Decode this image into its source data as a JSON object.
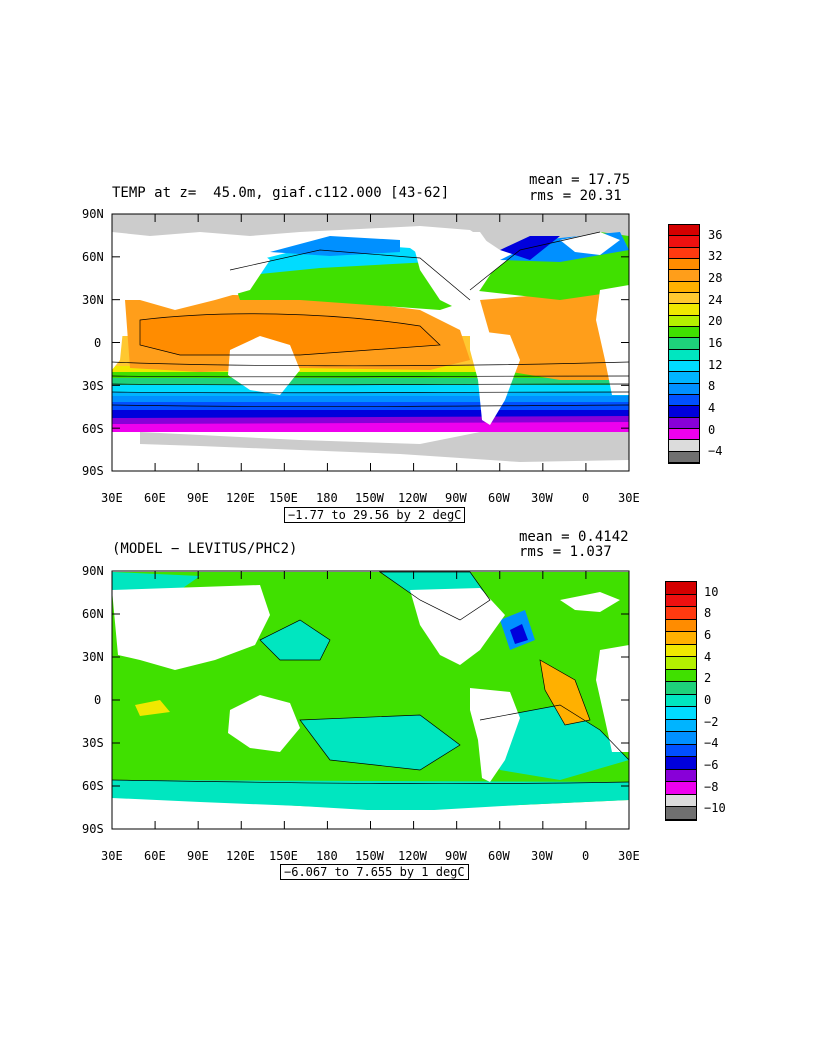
{
  "panels": [
    {
      "title": "TEMP at z=  45.0m, giaf.c112.000 [43-62]",
      "mean": "mean = 17.75",
      "rms": "rms = 20.31",
      "range": "−1.77 to 29.56 by 2 degC",
      "lat_labels": [
        "90N",
        "60N",
        "30N",
        "0",
        "30S",
        "60S",
        "90S"
      ],
      "lon_labels": [
        "30E",
        "60E",
        "90E",
        "120E",
        "150E",
        "180",
        "150W",
        "120W",
        "90W",
        "60W",
        "30W",
        "0",
        "30E"
      ],
      "colorbar": {
        "labels": [
          "36",
          "32",
          "28",
          "24",
          "20",
          "16",
          "12",
          "8",
          "4",
          "0",
          "−4"
        ],
        "colors": [
          "#d40000",
          "#ee1010",
          "#ff3a10",
          "#ff8c00",
          "#ff9e1a",
          "#ffb000",
          "#ffc830",
          "#f0e800",
          "#b4f000",
          "#40e000",
          "#1ed27a",
          "#00e6c0",
          "#00dcff",
          "#00b4ff",
          "#0090ff",
          "#0050ff",
          "#0000dc",
          "#8800d8",
          "#ee00ee",
          "#dcdcdc",
          "#707070"
        ]
      }
    },
    {
      "title": "(MODEL − LEVITUS/PHC2)",
      "mean": "mean = 0.4142",
      "rms": "rms = 1.037",
      "range": "−6.067 to 7.655 by 1 degC",
      "lat_labels": [
        "90N",
        "60N",
        "30N",
        "0",
        "30S",
        "60S",
        "90S"
      ],
      "lon_labels": [
        "30E",
        "60E",
        "90E",
        "120E",
        "150E",
        "180",
        "150W",
        "120W",
        "90W",
        "60W",
        "30W",
        "0",
        "30E"
      ],
      "colorbar": {
        "labels": [
          "10",
          "8",
          "6",
          "4",
          "2",
          "0",
          "−2",
          "−4",
          "−6",
          "−8",
          "−10"
        ],
        "colors": [
          "#d40000",
          "#ee1010",
          "#ff3a10",
          "#ff8c00",
          "#ffb000",
          "#f0e800",
          "#b4f000",
          "#40e000",
          "#1ed27a",
          "#00e6c0",
          "#00dcff",
          "#00b4ff",
          "#0090ff",
          "#0050ff",
          "#0000dc",
          "#8800d8",
          "#ee00ee",
          "#dcdcdc",
          "#707070"
        ]
      }
    }
  ]
}
